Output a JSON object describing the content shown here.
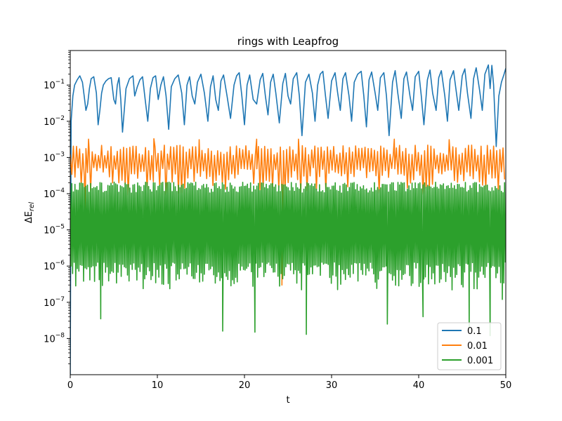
{
  "chart_data": {
    "type": "line",
    "title": "rings with Leapfrog",
    "xlabel": "t",
    "ylabel_base": "ΔE",
    "ylabel_sub": "rel",
    "yscale": "log",
    "xlim": [
      0,
      50
    ],
    "ylim": [
      1e-09,
      0.9
    ],
    "x_ticks": [
      0,
      10,
      20,
      30,
      40,
      50
    ],
    "y_ticks": [
      {
        "value": 1e-08,
        "base": "10",
        "exp": "−8"
      },
      {
        "value": 1e-07,
        "base": "10",
        "exp": "−7"
      },
      {
        "value": 1e-06,
        "base": "10",
        "exp": "−6"
      },
      {
        "value": 1e-05,
        "base": "10",
        "exp": "−5"
      },
      {
        "value": 0.0001,
        "base": "10",
        "exp": "−4"
      },
      {
        "value": 0.001,
        "base": "10",
        "exp": "−3"
      },
      {
        "value": 0.01,
        "base": "10",
        "exp": "−2"
      },
      {
        "value": 0.1,
        "base": "10",
        "exp": "−1"
      }
    ],
    "grid": false,
    "legend_position": "lower-right",
    "series": [
      {
        "name": "0.1",
        "color": "#1f77b4",
        "x": [
          0,
          0.1,
          0.3,
          0.5,
          0.8,
          1.1,
          1.4,
          1.6,
          1.8,
          2.0,
          2.2,
          2.4,
          2.7,
          3.0,
          3.2,
          3.4,
          3.6,
          3.8,
          4.1,
          4.4,
          4.7,
          5.0,
          5.2,
          5.4,
          5.6,
          5.8,
          6.0,
          6.4,
          6.8,
          7.2,
          7.4,
          7.7,
          8.0,
          8.3,
          8.6,
          8.9,
          9.2,
          9.5,
          9.8,
          10.1,
          10.4,
          10.7,
          11.0,
          11.3,
          11.6,
          12.0,
          12.4,
          12.8,
          13.1,
          13.4,
          13.7,
          14.0,
          14.3,
          14.6,
          15.0,
          15.4,
          15.8,
          16.1,
          16.4,
          16.7,
          17.0,
          17.3,
          17.6,
          18.0,
          18.4,
          18.8,
          19.1,
          19.4,
          19.7,
          20.0,
          20.3,
          20.6,
          21.0,
          21.4,
          21.8,
          22.1,
          22.4,
          22.7,
          23.0,
          23.3,
          23.6,
          24.0,
          24.4,
          24.7,
          25.0,
          25.3,
          25.6,
          26.0,
          26.3,
          26.6,
          27.0,
          27.4,
          27.8,
          28.1,
          28.4,
          28.7,
          29.0,
          29.3,
          29.6,
          30.0,
          30.4,
          30.7,
          31.0,
          31.3,
          31.6,
          32.0,
          32.3,
          32.6,
          33.0,
          33.4,
          33.7,
          34.0,
          34.3,
          34.6,
          35.0,
          35.3,
          35.6,
          36.0,
          36.3,
          36.6,
          37.0,
          37.3,
          37.6,
          38.0,
          38.3,
          38.6,
          39.0,
          39.3,
          39.6,
          40.0,
          40.3,
          40.6,
          41.0,
          41.3,
          41.6,
          42.0,
          42.3,
          42.6,
          43.0,
          43.3,
          43.6,
          44.0,
          44.3,
          44.6,
          45.0,
          45.3,
          45.6,
          46.0,
          46.3,
          46.6,
          47.0,
          47.3,
          47.6,
          48.0,
          48.2,
          48.4,
          48.6,
          48.9,
          49.2,
          49.5,
          49.8,
          50.0
        ],
        "y": [
          1e-09,
          0.01,
          0.05,
          0.1,
          0.14,
          0.18,
          0.12,
          0.05,
          0.02,
          0.03,
          0.08,
          0.15,
          0.17,
          0.06,
          0.008,
          0.02,
          0.06,
          0.1,
          0.13,
          0.15,
          0.16,
          0.04,
          0.03,
          0.1,
          0.16,
          0.04,
          0.005,
          0.08,
          0.15,
          0.18,
          0.05,
          0.09,
          0.14,
          0.17,
          0.04,
          0.01,
          0.08,
          0.16,
          0.18,
          0.04,
          0.1,
          0.17,
          0.05,
          0.006,
          0.09,
          0.15,
          0.19,
          0.06,
          0.008,
          0.1,
          0.17,
          0.05,
          0.03,
          0.12,
          0.2,
          0.06,
          0.01,
          0.09,
          0.18,
          0.04,
          0.02,
          0.13,
          0.19,
          0.05,
          0.012,
          0.1,
          0.18,
          0.22,
          0.05,
          0.008,
          0.1,
          0.19,
          0.04,
          0.03,
          0.14,
          0.21,
          0.05,
          0.015,
          0.12,
          0.2,
          0.06,
          0.009,
          0.11,
          0.21,
          0.05,
          0.03,
          0.15,
          0.22,
          0.05,
          0.004,
          0.12,
          0.2,
          0.06,
          0.01,
          0.1,
          0.2,
          0.24,
          0.05,
          0.012,
          0.13,
          0.22,
          0.06,
          0.02,
          0.15,
          0.22,
          0.05,
          0.01,
          0.12,
          0.2,
          0.24,
          0.05,
          0.007,
          0.14,
          0.23,
          0.06,
          0.02,
          0.16,
          0.22,
          0.05,
          0.004,
          0.12,
          0.25,
          0.06,
          0.012,
          0.15,
          0.23,
          0.05,
          0.02,
          0.17,
          0.24,
          0.05,
          0.008,
          0.14,
          0.26,
          0.06,
          0.02,
          0.16,
          0.25,
          0.05,
          0.01,
          0.14,
          0.25,
          0.07,
          0.02,
          0.18,
          0.28,
          0.06,
          0.012,
          0.15,
          0.3,
          0.07,
          0.02,
          0.2,
          0.36,
          0.08,
          0.35,
          0.1,
          0.002,
          0.05,
          0.12,
          0.2,
          0.29
        ]
      },
      {
        "name": "0.01",
        "color": "#ff7f0e",
        "generated": "oscillation",
        "period": 0.36,
        "y_high": 0.002,
        "y_low": 0.00025,
        "spikes": [
          {
            "x": 2.1,
            "y": 0.0032
          },
          {
            "x": 9.6,
            "y": 0.0033
          },
          {
            "x": 14.8,
            "y": 0.0031
          },
          {
            "x": 21.4,
            "y": 0.0032
          },
          {
            "x": 26.2,
            "y": 0.0032
          },
          {
            "x": 37.2,
            "y": 0.0032
          },
          {
            "x": 43.5,
            "y": 0.0031
          },
          {
            "x": 24.3,
            "y": 3e-07
          },
          {
            "x": 1.7,
            "y": 2e-05
          }
        ]
      },
      {
        "name": "0.001",
        "color": "#2ca02c",
        "generated": "oscillation",
        "period": 0.18,
        "y_high": 0.00019,
        "y_low": 6e-07,
        "spikes": [
          {
            "x": 3.5,
            "y": 3.5e-08
          },
          {
            "x": 17.5,
            "y": 1.6e-08
          },
          {
            "x": 21.2,
            "y": 1.5e-08
          },
          {
            "x": 27.1,
            "y": 1.3e-08
          },
          {
            "x": 36.4,
            "y": 2.5e-08
          },
          {
            "x": 40.5,
            "y": 4e-08
          },
          {
            "x": 45.8,
            "y": 2e-08
          },
          {
            "x": 48.2,
            "y": 1.2e-08
          },
          {
            "x": 49.6,
            "y": 1.2e-07
          }
        ]
      }
    ]
  }
}
